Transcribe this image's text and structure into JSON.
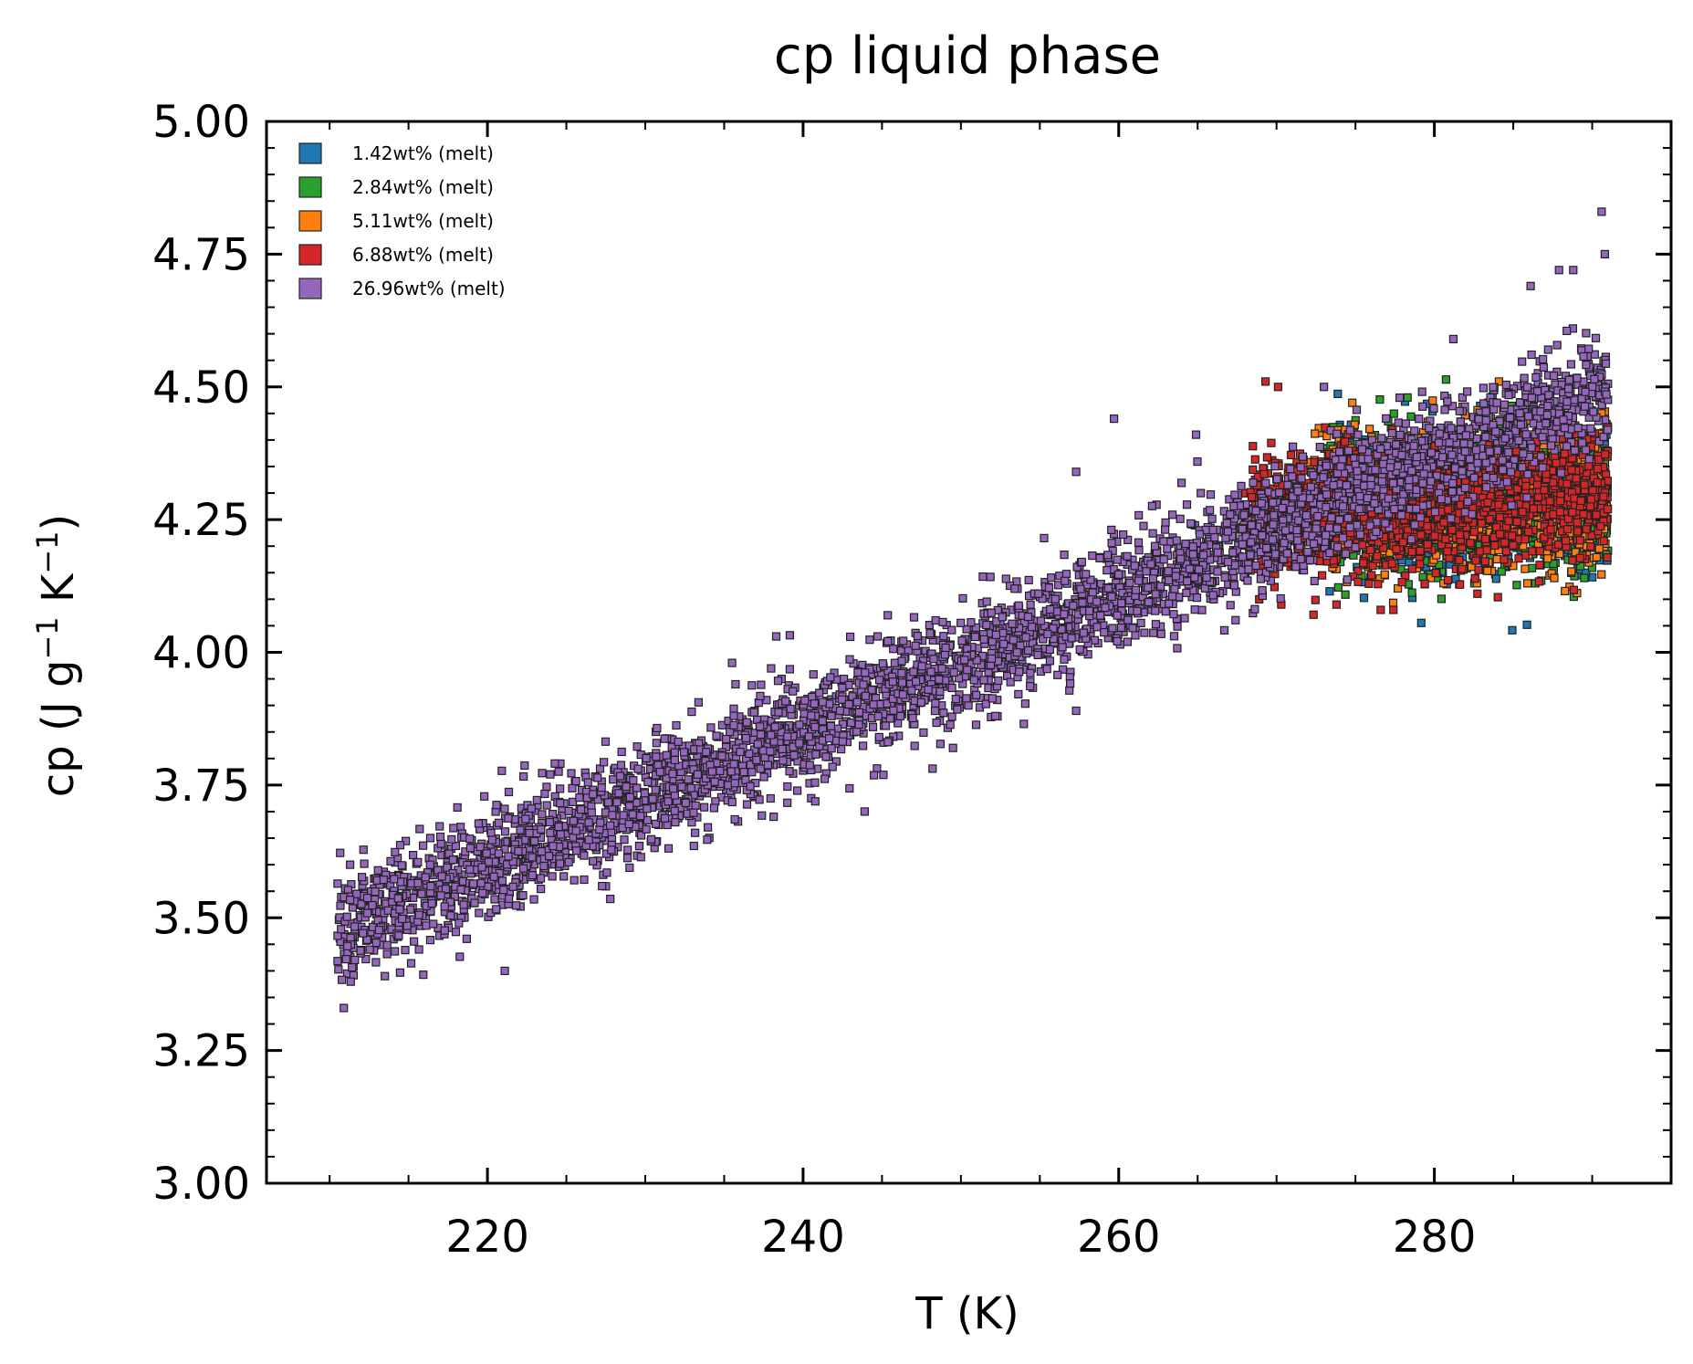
{
  "chart_data": {
    "type": "scatter",
    "title": "cp liquid phase",
    "xlabel": "T (K)",
    "ylabel_parts": {
      "base": "cp (J g",
      "sup1": "−1",
      "mid": " K",
      "sup2": "−1",
      "end": ")"
    },
    "xlim": [
      206,
      295
    ],
    "ylim": [
      3.0,
      5.0
    ],
    "x_ticks": [
      220,
      240,
      260,
      280
    ],
    "x_tick_labels": [
      "220",
      "240",
      "260",
      "280"
    ],
    "y_ticks": [
      3.0,
      3.25,
      3.5,
      3.75,
      4.0,
      4.25,
      4.5,
      4.75,
      5.0
    ],
    "y_tick_labels": [
      "3.00",
      "3.25",
      "3.50",
      "3.75",
      "4.00",
      "4.25",
      "4.50",
      "4.75",
      "5.00"
    ],
    "x_minor_step": 5,
    "y_minor_step": 0.05,
    "legend_placement": "top-left",
    "grid": false,
    "marker": "square",
    "series": [
      {
        "name": "1.42wt% (melt)",
        "color": "#1f77b4",
        "trend": {
          "x_range": [
            273,
            291
          ],
          "y_start": 4.28,
          "y_end": 4.3,
          "spread": 0.06
        },
        "points": [
          [
            274.2,
            4.31
          ],
          [
            279.5,
            4.27
          ],
          [
            284.8,
            4.45
          ],
          [
            289.6,
            4.15
          ],
          [
            290.9,
            4.41
          ]
        ]
      },
      {
        "name": "2.84wt% (melt)",
        "color": "#2ca02c",
        "trend": {
          "x_range": [
            273,
            291
          ],
          "y_start": 4.28,
          "y_end": 4.3,
          "spread": 0.06
        },
        "points": [
          [
            278.3,
            4.48
          ],
          [
            280.2,
            4.14
          ],
          [
            286.4,
            4.13
          ],
          [
            289.5,
            4.14
          ],
          [
            290.9,
            4.43
          ]
        ]
      },
      {
        "name": "5.11wt% (melt)",
        "color": "#ff7f0e",
        "trend": {
          "x_range": [
            272,
            291
          ],
          "y_start": 4.28,
          "y_end": 4.3,
          "spread": 0.06
        },
        "points": [
          [
            274.8,
            4.47
          ],
          [
            282.7,
            4.13
          ],
          [
            285.9,
            4.13
          ],
          [
            287.6,
            4.14
          ],
          [
            290.6,
            4.45
          ]
        ]
      },
      {
        "name": "6.88wt% (melt)",
        "color": "#d62728",
        "trend": {
          "x_range": [
            268,
            291
          ],
          "y_start": 4.25,
          "y_end": 4.3,
          "spread": 0.055
        },
        "points": [
          [
            269.3,
            4.51
          ],
          [
            270.1,
            4.5
          ],
          [
            268.9,
            4.1
          ],
          [
            270.3,
            4.09
          ],
          [
            273.8,
            4.09
          ],
          [
            276.6,
            4.08
          ],
          [
            277.4,
            4.08
          ]
        ]
      },
      {
        "name": "26.96wt% (melt)",
        "color": "#9467bd",
        "trend": {
          "x_range": [
            210.5,
            291
          ],
          "y_start": 3.48,
          "y_end": 4.5,
          "spread": 0.05
        },
        "points": [
          [
            210.9,
            3.33
          ],
          [
            211.3,
            3.6
          ],
          [
            213.5,
            3.39
          ],
          [
            221.1,
            3.4
          ],
          [
            235.5,
            3.98
          ],
          [
            238.3,
            4.03
          ],
          [
            243.9,
            3.7
          ],
          [
            249.5,
            3.82
          ],
          [
            257.3,
            3.89
          ],
          [
            257.3,
            4.34
          ],
          [
            259.7,
            4.44
          ],
          [
            262.3,
            4.2
          ],
          [
            264.9,
            4.41
          ],
          [
            286.1,
            4.69
          ],
          [
            287.9,
            4.72
          ],
          [
            290.6,
            4.83
          ],
          [
            290.8,
            4.75
          ],
          [
            288.8,
            4.72
          ],
          [
            273.0,
            4.5
          ],
          [
            281.2,
            4.59
          ]
        ]
      }
    ]
  }
}
